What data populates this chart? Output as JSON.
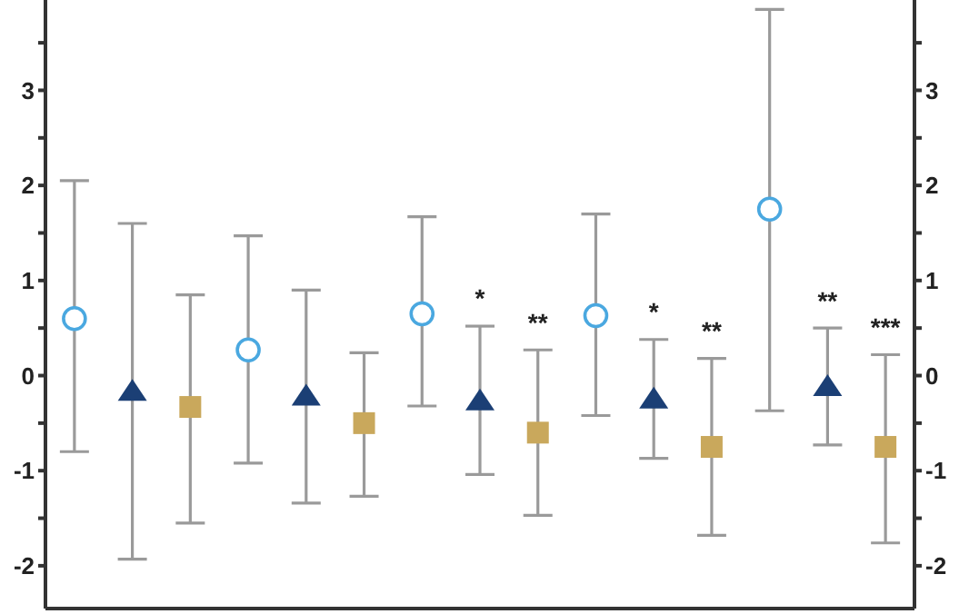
{
  "chart_data": {
    "type": "scatter",
    "categories": [
      null,
      null,
      null,
      null,
      null,
      null,
      null,
      null,
      null,
      null,
      null,
      null,
      null,
      null,
      null
    ],
    "ylim": [
      -2.45,
      3.95
    ],
    "yticks": [
      -2,
      {
        "value": -1.5,
        "label": null
      },
      -1,
      {
        "value": -0.5,
        "label": null
      },
      0,
      {
        "value": 0.5,
        "label": null
      },
      1,
      {
        "value": 1.5,
        "label": null
      },
      2,
      {
        "value": 2.5,
        "label": null
      },
      3,
      {
        "value": 3.5,
        "label": null
      }
    ],
    "y2lim": [
      -2.45,
      3.95
    ],
    "y2ticks": [
      -2,
      {
        "value": -1.5,
        "label": null
      },
      -1,
      {
        "value": -0.5,
        "label": null
      },
      0,
      {
        "value": 0.5,
        "label": null
      },
      1,
      {
        "value": 1.5,
        "label": null
      },
      2,
      {
        "value": 2.5,
        "label": null
      },
      3,
      {
        "value": 3.5,
        "label": null
      }
    ],
    "tick_labels": "y",
    "series": [
      {
        "marker": "circle",
        "color": "#4aa8e0",
        "values": [
          0.6,
          null,
          null,
          0.27,
          null,
          null,
          0.65,
          null,
          null,
          0.63,
          null,
          null,
          1.75,
          null,
          null
        ],
        "errors": [
          [
            -0.8,
            2.05
          ],
          null,
          null,
          [
            -0.92,
            1.47
          ],
          null,
          null,
          [
            -0.32,
            1.67
          ],
          null,
          null,
          [
            -0.42,
            1.7
          ],
          null,
          null,
          [
            -0.37,
            3.85
          ],
          null,
          null
        ]
      },
      {
        "marker": "triangle",
        "color": "#1b3f75",
        "values": [
          null,
          -0.17,
          null,
          null,
          -0.22,
          null,
          null,
          -0.27,
          null,
          null,
          -0.25,
          null,
          null,
          -0.12,
          null
        ],
        "errors": [
          null,
          [
            -1.93,
            1.6
          ],
          null,
          null,
          [
            -1.34,
            0.9
          ],
          null,
          null,
          [
            -1.04,
            0.52
          ],
          null,
          null,
          [
            -0.87,
            0.38
          ],
          null,
          null,
          [
            -0.73,
            0.5
          ],
          null
        ]
      },
      {
        "marker": "square",
        "color": "#c9a85c",
        "values": [
          null,
          null,
          -0.33,
          null,
          null,
          -0.5,
          null,
          null,
          -0.6,
          null,
          null,
          -0.75,
          null,
          null,
          -0.75
        ],
        "errors": [
          null,
          null,
          [
            -1.55,
            0.85
          ],
          null,
          null,
          [
            -1.27,
            0.24
          ],
          null,
          null,
          [
            -1.47,
            0.27
          ],
          null,
          null,
          [
            -1.68,
            0.18
          ],
          null,
          null,
          [
            -1.76,
            0.22
          ]
        ]
      }
    ],
    "annotations": [
      "*",
      "**",
      "*",
      "**",
      "**",
      "***"
    ]
  }
}
